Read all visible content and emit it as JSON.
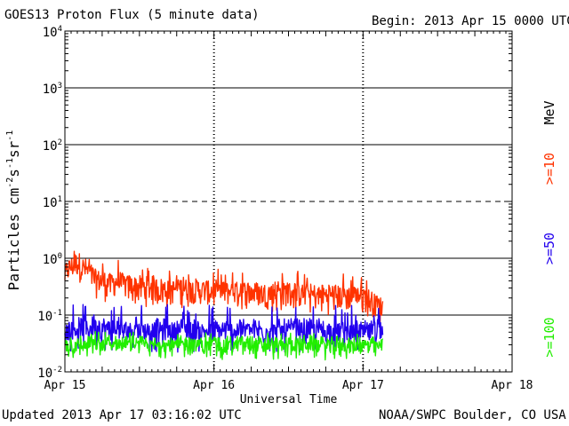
{
  "header": {
    "title": "GOES13 Proton Flux (5 minute data)",
    "begin": "Begin: 2013 Apr 15 0000 UTC"
  },
  "footer": {
    "updated": "Updated 2013 Apr 17 03:16:02 UTC",
    "credit": "NOAA/SWPC Boulder, CO USA"
  },
  "colors": {
    "p10": "#ff3300",
    "p50": "#2200ee",
    "p100": "#22ee00",
    "unit": "#000000"
  },
  "chart_data": {
    "type": "line",
    "title": "GOES13 Proton Flux (5 minute data)",
    "xlabel": "Universal Time",
    "ylabel_parts": [
      "Particles cm",
      "-2",
      "s",
      "-1",
      "sr",
      "-1"
    ],
    "yscale": "log",
    "ylim": [
      0.01,
      10000
    ],
    "y_ticks": [
      {
        "value": 0.01,
        "base": "10",
        "exp": "-2"
      },
      {
        "value": 0.1,
        "base": "10",
        "exp": "-1"
      },
      {
        "value": 1,
        "base": "10",
        "exp": "0"
      },
      {
        "value": 10,
        "base": "10",
        "exp": "1"
      },
      {
        "value": 100,
        "base": "10",
        "exp": "2"
      },
      {
        "value": 1000,
        "base": "10",
        "exp": "3"
      },
      {
        "value": 10000,
        "base": "10",
        "exp": "4"
      }
    ],
    "gridlines": [
      {
        "value": 0.1,
        "style": "solid"
      },
      {
        "value": 1,
        "style": "solid"
      },
      {
        "value": 10,
        "style": "dashed"
      },
      {
        "value": 100,
        "style": "solid"
      },
      {
        "value": 1000,
        "style": "solid"
      }
    ],
    "x_unit": "days since 2013 Apr 15 00:00 UTC",
    "xlim": [
      0,
      3
    ],
    "x_ticks": [
      {
        "value": 0,
        "label": "Apr 15"
      },
      {
        "value": 1,
        "label": "Apr 16"
      },
      {
        "value": 2,
        "label": "Apr 17"
      },
      {
        "value": 3,
        "label": "Apr 18"
      }
    ],
    "data_end": 2.135,
    "legend": {
      "placement": "right",
      "unit": "MeV"
    },
    "series": [
      {
        "name": ">=10",
        "color": "#ff3300",
        "x": [
          0,
          0.02,
          0.05,
          0.08,
          0.1,
          0.15,
          0.2,
          0.25,
          0.3,
          0.35,
          0.4,
          0.5,
          0.6,
          0.7,
          0.8,
          0.9,
          1.0,
          1.1,
          1.2,
          1.3,
          1.4,
          1.5,
          1.6,
          1.7,
          1.8,
          1.9,
          2.0,
          2.05,
          2.1,
          2.135
        ],
        "y": [
          0.5,
          0.65,
          0.75,
          0.85,
          0.8,
          0.6,
          0.45,
          0.4,
          0.35,
          0.4,
          0.35,
          0.32,
          0.3,
          0.28,
          0.3,
          0.28,
          0.27,
          0.26,
          0.27,
          0.25,
          0.24,
          0.26,
          0.24,
          0.22,
          0.23,
          0.22,
          0.22,
          0.18,
          0.15,
          0.14
        ]
      },
      {
        "name": ">=50",
        "color": "#2200ee",
        "x": [
          0,
          0.2,
          0.4,
          0.6,
          0.8,
          1.0,
          1.2,
          1.4,
          1.6,
          1.8,
          2.0,
          2.135
        ],
        "y": [
          0.055,
          0.06,
          0.055,
          0.055,
          0.055,
          0.052,
          0.055,
          0.053,
          0.055,
          0.052,
          0.05,
          0.05
        ]
      },
      {
        "name": ">=100",
        "color": "#22ee00",
        "x": [
          0,
          0.2,
          0.4,
          0.6,
          0.8,
          1.0,
          1.2,
          1.4,
          1.6,
          1.8,
          2.0,
          2.135
        ],
        "y": [
          0.028,
          0.03,
          0.03,
          0.029,
          0.03,
          0.029,
          0.03,
          0.029,
          0.03,
          0.029,
          0.029,
          0.028
        ]
      }
    ]
  }
}
